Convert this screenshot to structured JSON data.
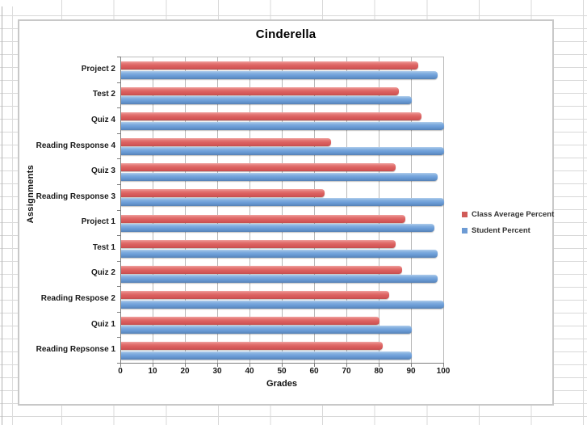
{
  "chart_data": {
    "type": "bar",
    "orientation": "horizontal",
    "title": "Cinderella",
    "xlabel": "Grades",
    "ylabel": "Assignments",
    "xlim": [
      0,
      100
    ],
    "xticks": [
      0,
      10,
      20,
      30,
      40,
      50,
      60,
      70,
      80,
      90,
      100
    ],
    "grid": "vertical",
    "legend_position": "right",
    "categories": [
      "Project 2",
      "Test 2",
      "Quiz 4",
      "Reading Response 4",
      "Quiz 3",
      "Reading Response 3",
      "Project 1",
      "Test 1",
      "Quiz 2",
      "Reading Respose 2",
      "Quiz 1",
      "Reading Repsonse 1"
    ],
    "series": [
      {
        "name": "Class Average Percent",
        "color": "#d05b58",
        "values": [
          92,
          86,
          93,
          65,
          85,
          63,
          88,
          85,
          87,
          83,
          80,
          81
        ]
      },
      {
        "name": "Student Percent",
        "color": "#6d9bd4",
        "values": [
          98,
          90,
          100,
          100,
          98,
          100,
          97,
          98,
          98,
          100,
          90,
          90
        ]
      }
    ]
  },
  "colors": {
    "sheet_gridline": "#d8d8d8",
    "plot_gridline": "#b8b8b8",
    "axis_line": "#7f7f7f",
    "chart_border": "#c8c8c8"
  }
}
